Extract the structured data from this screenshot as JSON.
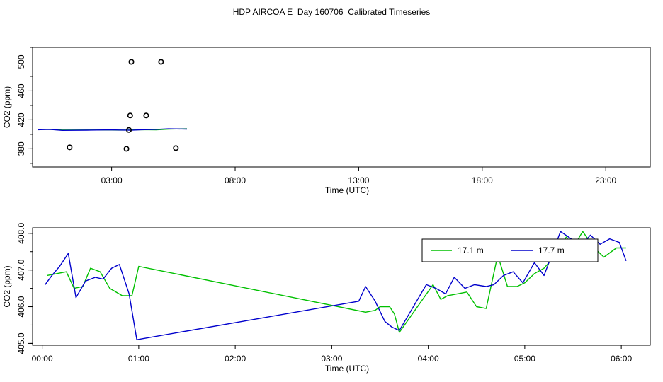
{
  "title": "HDP AIRCOA E  Day 160706  Calibrated Timeseries",
  "colors": {
    "green": "#00c000",
    "blue": "#0000cc",
    "frame": "#000000"
  },
  "chart_data": [
    {
      "type": "line",
      "title": "HDP AIRCOA E  Day 160706  Calibrated Timeseries",
      "xlabel": "Time (UTC)",
      "ylabel": "CO2 (ppm)",
      "x_unit": "hours UTC",
      "xlim": [
        -0.2,
        24.8
      ],
      "ylim": [
        355,
        520
      ],
      "xticks": [
        {
          "value": 3,
          "label": "03:00"
        },
        {
          "value": 8,
          "label": "08:00"
        },
        {
          "value": 13,
          "label": "13:00"
        },
        {
          "value": 18,
          "label": "18:00"
        },
        {
          "value": 23,
          "label": "23:00"
        }
      ],
      "yticks": [
        {
          "value": 380,
          "label": "380"
        },
        {
          "value": 420,
          "label": "420"
        },
        {
          "value": 460,
          "label": "460"
        },
        {
          "value": 500,
          "label": "500"
        }
      ],
      "series": [
        {
          "color": "#00c000",
          "x": [
            0.0,
            0.5,
            1.0,
            2.0,
            3.0,
            3.3,
            3.8,
            4.2,
            4.8,
            5.3,
            6.05
          ],
          "y": [
            406.9,
            406.8,
            406.0,
            406.0,
            406.0,
            405.9,
            406.0,
            406.5,
            406.3,
            407.2,
            407.6
          ]
        },
        {
          "color": "#0000cc",
          "x": [
            0.0,
            0.5,
            1.0,
            2.0,
            3.0,
            3.3,
            3.8,
            4.2,
            4.8,
            5.3,
            6.05
          ],
          "y": [
            406.4,
            406.8,
            405.5,
            405.8,
            406.2,
            406.0,
            405.7,
            406.4,
            406.8,
            407.6,
            407.2
          ]
        }
      ],
      "markers": {
        "shape": "open-circle",
        "x": [
          1.3,
          3.6,
          3.7,
          3.75,
          3.8,
          4.4,
          5.0,
          5.6
        ],
        "y": [
          382,
          380,
          406,
          426,
          500,
          426,
          500,
          381
        ]
      }
    },
    {
      "type": "line",
      "xlabel": "Time (UTC)",
      "ylabel": "CO2 (ppm)",
      "x_unit": "hours UTC",
      "xlim": [
        -0.1,
        6.3
      ],
      "ylim": [
        404.95,
        408.15
      ],
      "xticks": [
        {
          "value": 0,
          "label": "00:00"
        },
        {
          "value": 1,
          "label": "01:00"
        },
        {
          "value": 2,
          "label": "02:00"
        },
        {
          "value": 3,
          "label": "03:00"
        },
        {
          "value": 4,
          "label": "04:00"
        },
        {
          "value": 5,
          "label": "05:00"
        },
        {
          "value": 6,
          "label": "06:00"
        }
      ],
      "yticks": [
        {
          "value": 405.0,
          "label": "405.0"
        },
        {
          "value": 406.0,
          "label": "406.0"
        },
        {
          "value": 407.0,
          "label": "407.0"
        },
        {
          "value": 408.0,
          "label": "408.0"
        }
      ],
      "legend": {
        "placement": "top-right"
      },
      "series": [
        {
          "name": "17.1 m",
          "color": "#00c000",
          "x": [
            0.05,
            0.15,
            0.25,
            0.33,
            0.42,
            0.5,
            0.6,
            0.7,
            0.83,
            0.93,
            1.0,
            3.35,
            3.45,
            3.5,
            3.6,
            3.65,
            3.7,
            4.05,
            4.13,
            4.2,
            4.3,
            4.4,
            4.5,
            4.6,
            4.72,
            4.82,
            4.92,
            5.0,
            5.1,
            5.2,
            5.3,
            5.43,
            5.5,
            5.6,
            5.72,
            5.82,
            5.95,
            6.05
          ],
          "y": [
            406.85,
            406.9,
            406.95,
            406.5,
            406.55,
            407.05,
            406.95,
            406.5,
            406.3,
            406.3,
            407.1,
            405.85,
            405.9,
            406.0,
            406.0,
            405.8,
            405.3,
            406.6,
            406.2,
            406.3,
            406.35,
            406.4,
            406.0,
            405.95,
            407.4,
            406.55,
            406.55,
            406.65,
            406.9,
            407.05,
            407.35,
            407.9,
            407.6,
            408.05,
            407.6,
            407.35,
            407.6,
            407.6
          ]
        },
        {
          "name": "17.7 m",
          "color": "#0000cc",
          "x": [
            0.03,
            0.1,
            0.18,
            0.27,
            0.35,
            0.45,
            0.55,
            0.63,
            0.72,
            0.8,
            0.9,
            0.98,
            3.28,
            3.35,
            3.45,
            3.55,
            3.62,
            3.7,
            3.98,
            4.08,
            4.18,
            4.27,
            4.38,
            4.48,
            4.6,
            4.68,
            4.78,
            4.88,
            4.98,
            5.1,
            5.2,
            5.3,
            5.37,
            5.48,
            5.58,
            5.68,
            5.78,
            5.88,
            5.98,
            6.05
          ],
          "y": [
            406.6,
            406.85,
            407.1,
            407.45,
            406.25,
            406.7,
            406.8,
            406.75,
            407.05,
            407.15,
            406.35,
            405.1,
            406.15,
            406.55,
            406.15,
            405.6,
            405.45,
            405.35,
            406.6,
            406.5,
            406.35,
            406.8,
            406.5,
            406.6,
            406.55,
            406.6,
            406.85,
            406.95,
            406.65,
            407.2,
            406.85,
            407.55,
            408.05,
            407.85,
            407.65,
            407.95,
            407.7,
            407.85,
            407.75,
            407.25
          ]
        }
      ]
    }
  ]
}
